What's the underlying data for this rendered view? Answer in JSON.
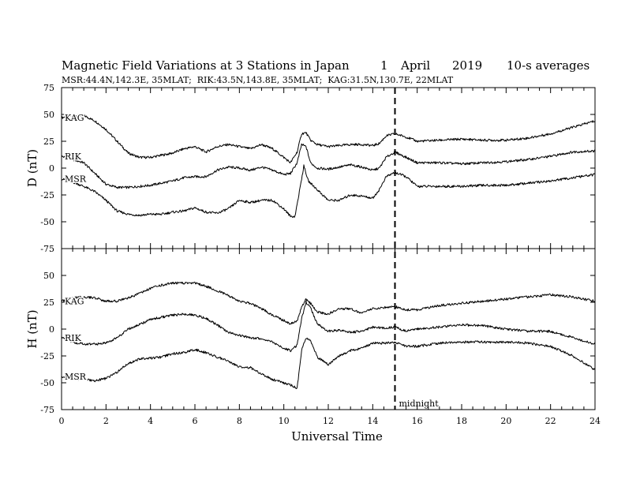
{
  "chart_data": {
    "type": "line",
    "title": "Magnetic Field Variations at 3 Stations in Japan",
    "date": {
      "day": "1",
      "month": "April",
      "year": "2019"
    },
    "resolution": "10-s averages",
    "subtitle": "MSR:44.4N,142.3E, 35MLAT;  RIK:43.5N,143.8E, 35MLAT;  KAG:31.5N,130.7E, 22MLAT",
    "xlabel": "Universal Time",
    "xlim": [
      0,
      24
    ],
    "xticks": [
      "0",
      "2",
      "4",
      "6",
      "8",
      "10",
      "12",
      "14",
      "16",
      "18",
      "20",
      "22",
      "24"
    ],
    "annotation": {
      "x": 15,
      "label": "midnight"
    },
    "panels": [
      {
        "ylabel": "D (nT)",
        "ylim": [
          -75,
          75
        ],
        "yticks": [
          "75",
          "50",
          "25",
          "0",
          "-25",
          "-50",
          "-75"
        ],
        "series": [
          {
            "name": "KAG",
            "x": [
              0,
              0.5,
              1,
              1.5,
              2,
              2.5,
              3,
              3.5,
              4,
              4.5,
              5,
              5.5,
              6,
              6.5,
              7,
              7.5,
              8,
              8.5,
              9,
              9.5,
              10,
              10.3,
              10.6,
              10.8,
              11,
              11.2,
              11.5,
              12,
              12.5,
              13,
              13.5,
              14,
              14.3,
              14.6,
              15,
              15.5,
              16,
              17,
              18,
              19,
              20,
              21,
              22,
              23,
              24
            ],
            "y": [
              47,
              49,
              49,
              44,
              36,
              25,
              14,
              10,
              10,
              12,
              14,
              18,
              20,
              15,
              20,
              22,
              20,
              18,
              22,
              18,
              10,
              5,
              15,
              32,
              33,
              26,
              22,
              20,
              21,
              22,
              22,
              21,
              23,
              30,
              32,
              29,
              25,
              26,
              27,
              26,
              26,
              28,
              32,
              38,
              44
            ]
          },
          {
            "name": "RIK",
            "x": [
              0,
              0.5,
              1,
              1.5,
              2,
              2.5,
              3,
              3.5,
              4,
              4.5,
              5,
              5.5,
              6,
              6.5,
              7,
              7.5,
              8,
              8.5,
              9,
              9.5,
              10,
              10.3,
              10.6,
              10.8,
              11,
              11.2,
              11.5,
              12,
              12.5,
              13,
              13.5,
              14,
              14.3,
              14.6,
              15,
              15.5,
              16,
              17,
              18,
              19,
              20,
              21,
              22,
              23,
              24
            ],
            "y": [
              11,
              8,
              5,
              -5,
              -15,
              -18,
              -18,
              -17,
              -16,
              -14,
              -12,
              -9,
              -8,
              -8,
              -2,
              1,
              0,
              -2,
              1,
              -2,
              -6,
              -5,
              5,
              22,
              20,
              5,
              0,
              -1,
              1,
              3,
              1,
              -2,
              0,
              10,
              15,
              10,
              5,
              5,
              4,
              5,
              6,
              8,
              11,
              15,
              16
            ]
          },
          {
            "name": "MSR",
            "x": [
              0,
              0.5,
              1,
              1.5,
              2,
              2.5,
              3,
              3.5,
              4,
              4.5,
              5,
              5.5,
              6,
              6.5,
              7,
              7.5,
              8,
              8.5,
              9,
              9.5,
              10,
              10.3,
              10.5,
              10.7,
              10.9,
              11.1,
              11.5,
              12,
              12.5,
              13,
              13.5,
              14,
              14.3,
              14.6,
              15,
              15.5,
              16,
              17,
              18,
              19,
              20,
              21,
              22,
              23,
              24
            ],
            "y": [
              -10,
              -13,
              -17,
              -22,
              -30,
              -40,
              -43,
              -44,
              -43,
              -43,
              -41,
              -40,
              -37,
              -41,
              -42,
              -38,
              -30,
              -32,
              -30,
              -30,
              -38,
              -45,
              -45,
              -22,
              2,
              -12,
              -20,
              -30,
              -30,
              -25,
              -26,
              -28,
              -20,
              -8,
              -4,
              -8,
              -17,
              -17,
              -17,
              -16,
              -16,
              -14,
              -12,
              -9,
              -6
            ]
          }
        ]
      },
      {
        "ylabel": "H (nT)",
        "ylim": [
          -75,
          75
        ],
        "yticks": [
          "75",
          "50",
          "25",
          "0",
          "-25",
          "-50",
          "-75"
        ],
        "series": [
          {
            "name": "KAG",
            "x": [
              0,
              0.5,
              1,
              1.5,
              2,
              2.5,
              3,
              3.5,
              4,
              4.5,
              5,
              5.5,
              6,
              6.5,
              7,
              7.5,
              8,
              8.5,
              9,
              9.5,
              10,
              10.3,
              10.6,
              10.8,
              11,
              11.2,
              11.5,
              12,
              12.5,
              13,
              13.5,
              14,
              14.5,
              15,
              15.5,
              16,
              17,
              18,
              19,
              20,
              21,
              22,
              23,
              24
            ],
            "y": [
              26,
              29,
              30,
              29,
              26,
              26,
              29,
              33,
              38,
              41,
              43,
              43,
              43,
              40,
              36,
              31,
              26,
              24,
              19,
              13,
              8,
              5,
              8,
              20,
              28,
              24,
              16,
              14,
              19,
              19,
              15,
              19,
              20,
              21,
              18,
              18,
              22,
              24,
              26,
              28,
              30,
              32,
              30,
              26
            ]
          },
          {
            "name": "RIK",
            "x": [
              0,
              0.5,
              1,
              1.5,
              2,
              2.5,
              3,
              3.5,
              4,
              4.5,
              5,
              5.5,
              6,
              6.5,
              7,
              7.5,
              8,
              8.5,
              9,
              9.5,
              10,
              10.3,
              10.6,
              10.8,
              11,
              11.2,
              11.5,
              12,
              12.5,
              13,
              13.5,
              14,
              14.5,
              15,
              15.5,
              16,
              17,
              18,
              19,
              20,
              21,
              22,
              23,
              24
            ],
            "y": [
              -8,
              -12,
              -14,
              -14,
              -13,
              -8,
              0,
              4,
              9,
              11,
              13,
              14,
              13,
              10,
              4,
              -3,
              -6,
              -8,
              -9,
              -12,
              -18,
              -20,
              -15,
              10,
              25,
              20,
              5,
              -2,
              -1,
              -3,
              -2,
              2,
              1,
              2,
              -2,
              0,
              2,
              4,
              3,
              0,
              -2,
              -2,
              -8,
              -14
            ]
          },
          {
            "name": "MSR",
            "x": [
              0,
              0.5,
              1,
              1.5,
              2,
              2.5,
              3,
              3.5,
              4,
              4.5,
              5,
              5.5,
              6,
              6.5,
              7,
              7.5,
              8,
              8.5,
              9,
              9.5,
              10,
              10.3,
              10.6,
              10.8,
              11,
              11.2,
              11.5,
              12,
              12.5,
              13,
              13.5,
              14,
              14.5,
              15,
              15.5,
              16,
              17,
              18,
              19,
              20,
              21,
              22,
              23,
              24
            ],
            "y": [
              -44,
              -46,
              -47,
              -48,
              -46,
              -40,
              -32,
              -28,
              -27,
              -26,
              -23,
              -22,
              -19,
              -22,
              -26,
              -30,
              -35,
              -36,
              -42,
              -47,
              -50,
              -52,
              -55,
              -20,
              -8,
              -10,
              -26,
              -33,
              -25,
              -20,
              -18,
              -13,
              -13,
              -12,
              -16,
              -16,
              -13,
              -12,
              -12,
              -12,
              -13,
              -16,
              -25,
              -38
            ]
          }
        ]
      }
    ]
  }
}
